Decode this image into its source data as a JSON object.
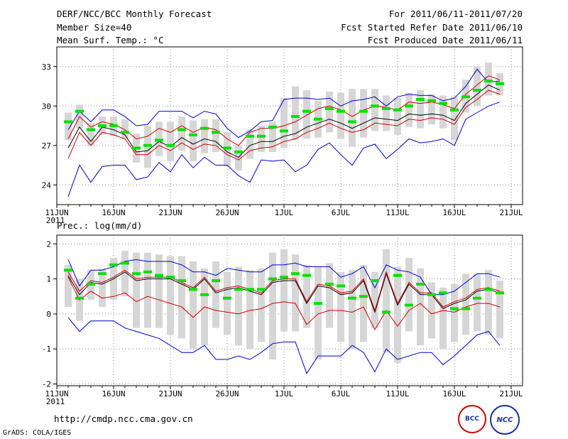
{
  "header": {
    "title": "DERF/NCC/BCC Monthly Forecast",
    "member_size": "Member Size=40",
    "variable": "Mean Surf. Temp.: °C",
    "period": "For 2011/06/11-2011/07/20",
    "fcst_started": "Fcst Started Refer Date 2011/06/10",
    "fcst_produced": "Fcst Produced Date 2011/06/11"
  },
  "colors": {
    "box": "#d6d6d6",
    "mean": "#00e000",
    "median": "#000000",
    "spread": "#cc0000",
    "extreme": "#0000cc"
  },
  "chart_data": [
    {
      "type": "line",
      "title": "Mean Surf. Temp.: °C",
      "xlabel": "",
      "ylabel": "°C",
      "ylim": [
        22.5,
        34.5
      ],
      "yticks": [
        24,
        27,
        30,
        33
      ],
      "xticks": [
        {
          "day": 0,
          "label": "11JUN",
          "sub": "2011"
        },
        {
          "day": 5,
          "label": "16JUN"
        },
        {
          "day": 10,
          "label": "21JUN"
        },
        {
          "day": 15,
          "label": "26JUN"
        },
        {
          "day": 20,
          "label": "1JUL"
        },
        {
          "day": 25,
          "label": "6JUL"
        },
        {
          "day": 30,
          "label": "11JUL"
        },
        {
          "day": 35,
          "label": "16JUL"
        },
        {
          "day": 40,
          "label": "21JUL"
        }
      ],
      "x": [
        1,
        2,
        3,
        4,
        5,
        6,
        7,
        8,
        9,
        10,
        11,
        12,
        13,
        14,
        15,
        16,
        17,
        18,
        19,
        20,
        21,
        22,
        23,
        24,
        25,
        26,
        27,
        28,
        29,
        30,
        31,
        32,
        33,
        34,
        35,
        36,
        37,
        38,
        39
      ],
      "series": [
        {
          "name": "max",
          "values": [
            23.1,
            25.5,
            24.2,
            25.4,
            25.5,
            25.5,
            24.4,
            24.6,
            25.7,
            25.0,
            26.3,
            25.3,
            26.1,
            25.5,
            25.5,
            24.7,
            24.2,
            25.9,
            25.8,
            25.9,
            25.0,
            25.5,
            26.7,
            27.2,
            26.3,
            25.5,
            26.8,
            27.1,
            26.0,
            26.7,
            27.5,
            27.2,
            27.3,
            27.5,
            27.0,
            29.0,
            29.5,
            30.0,
            30.3
          ]
        },
        {
          "name": "upper",
          "values": [
            27.5,
            29.2,
            28.4,
            28.8,
            28.6,
            28.2,
            27.5,
            27.7,
            28.3,
            28.0,
            28.5,
            28.0,
            28.4,
            28.2,
            27.5,
            27.0,
            28.0,
            28.3,
            28.3,
            28.5,
            28.8,
            29.3,
            29.8,
            30.0,
            29.7,
            29.2,
            29.7,
            30.0,
            29.9,
            29.7,
            30.3,
            30.2,
            30.3,
            30.1,
            29.8,
            30.9,
            31.6,
            32.3,
            32.0
          ]
        },
        {
          "name": "median",
          "values": [
            26.8,
            28.4,
            27.3,
            28.4,
            28.2,
            27.8,
            26.5,
            26.6,
            27.3,
            26.9,
            27.6,
            27.1,
            27.5,
            27.3,
            26.5,
            26.1,
            27.0,
            27.3,
            27.3,
            27.7,
            27.9,
            28.4,
            28.7,
            29.0,
            28.7,
            28.3,
            28.7,
            29.1,
            29.0,
            28.9,
            29.4,
            29.3,
            29.4,
            29.3,
            28.9,
            30.2,
            30.9,
            31.6,
            31.2
          ]
        },
        {
          "name": "lower",
          "values": [
            26.0,
            28.0,
            27.0,
            28.0,
            27.8,
            27.5,
            26.3,
            26.3,
            27.0,
            26.6,
            27.2,
            26.7,
            27.1,
            27.0,
            26.3,
            25.9,
            26.6,
            26.8,
            26.9,
            27.3,
            27.5,
            28.0,
            28.3,
            28.7,
            28.3,
            28.0,
            28.2,
            28.7,
            28.6,
            28.5,
            29.0,
            28.9,
            29.1,
            29.0,
            28.6,
            29.9,
            30.5,
            31.2,
            30.9
          ]
        },
        {
          "name": "min",
          "values": [
            28.2,
            29.6,
            28.8,
            29.7,
            29.7,
            29.2,
            28.5,
            28.6,
            29.6,
            29.6,
            29.6,
            29.1,
            29.6,
            29.4,
            28.3,
            27.6,
            28.1,
            28.8,
            28.9,
            30.5,
            30.6,
            30.6,
            30.5,
            30.6,
            30.0,
            30.4,
            30.5,
            30.7,
            30.0,
            30.7,
            30.9,
            30.8,
            30.8,
            30.4,
            30.6,
            31.5,
            32.8,
            31.8,
            31.9
          ]
        }
      ],
      "mean": [
        28.8,
        29.6,
        28.2,
        28.5,
        28.5,
        28.0,
        26.8,
        27.0,
        27.4,
        27.0,
        28.2,
        27.8,
        28.3,
        28.0,
        26.8,
        26.5,
        27.7,
        27.7,
        28.4,
        28.1,
        29.2,
        29.6,
        29.0,
        29.8,
        29.6,
        28.8,
        29.6,
        30.0,
        29.8,
        29.7,
        30.0,
        30.5,
        30.4,
        30.2,
        29.7,
        30.7,
        31.2,
        31.9,
        31.7
      ],
      "box_low": [
        27.4,
        28.3,
        27.0,
        27.8,
        27.7,
        27.5,
        25.7,
        25.3,
        26.2,
        25.8,
        26.6,
        25.8,
        26.4,
        26.5,
        25.4,
        25.1,
        26.0,
        26.5,
        26.5,
        26.8,
        27.4,
        27.5,
        27.6,
        28.0,
        27.5,
        26.9,
        27.6,
        28.1,
        28.1,
        27.8,
        28.4,
        28.3,
        28.6,
        28.3,
        27.4,
        29.5,
        30.0,
        30.8,
        30.8
      ],
      "box_high": [
        29.5,
        30.1,
        28.7,
        29.2,
        29.2,
        29.0,
        27.9,
        28.5,
        28.8,
        28.8,
        29.2,
        28.9,
        29.0,
        29.0,
        28.0,
        27.0,
        28.2,
        28.5,
        28.8,
        30.6,
        31.5,
        31.2,
        30.4,
        31.1,
        31.0,
        31.3,
        31.3,
        31.3,
        30.8,
        30.6,
        31.0,
        31.2,
        30.9,
        30.8,
        30.7,
        32.0,
        33.0,
        33.3,
        32.5
      ]
    },
    {
      "type": "line",
      "title": "Prec.: log(mm/d)",
      "xlabel": "",
      "ylabel": "log(mm/d)",
      "ylim": [
        -2.05,
        2.25
      ],
      "yticks": [
        -2,
        -1,
        0,
        1,
        2
      ],
      "xticks": [
        {
          "day": 0,
          "label": "11JUN",
          "sub": "2011"
        },
        {
          "day": 5,
          "label": "16JUN"
        },
        {
          "day": 10,
          "label": "21JUN"
        },
        {
          "day": 15,
          "label": "26JUN"
        },
        {
          "day": 20,
          "label": "1JUL"
        },
        {
          "day": 25,
          "label": "6JUL"
        },
        {
          "day": 30,
          "label": "11JUL"
        },
        {
          "day": 35,
          "label": "16JUL"
        },
        {
          "day": 40,
          "label": "21JUL"
        }
      ],
      "x": [
        1,
        2,
        3,
        4,
        5,
        6,
        7,
        8,
        9,
        10,
        11,
        12,
        13,
        14,
        15,
        16,
        17,
        18,
        19,
        20,
        21,
        22,
        23,
        24,
        25,
        26,
        27,
        28,
        29,
        30,
        31,
        32,
        33,
        34,
        35,
        36,
        37,
        38,
        39
      ],
      "series": [
        {
          "name": "min",
          "values": [
            -0.1,
            -0.5,
            -0.2,
            -0.2,
            -0.2,
            -0.4,
            -0.5,
            -0.6,
            -0.7,
            -0.9,
            -1.1,
            -1.1,
            -0.9,
            -1.3,
            -1.3,
            -1.2,
            -1.3,
            -1.1,
            -0.85,
            -0.8,
            -0.8,
            -1.7,
            -1.2,
            -1.2,
            -1.2,
            -0.9,
            -1.1,
            -1.65,
            -1.0,
            -1.3,
            -1.2,
            -1.1,
            -1.1,
            -1.45,
            -1.2,
            -0.9,
            -0.6,
            -0.5,
            -0.9
          ]
        },
        {
          "name": "lower",
          "values": [
            1.05,
            0.4,
            0.65,
            0.45,
            0.5,
            0.6,
            0.35,
            0.5,
            0.4,
            0.3,
            0.2,
            -0.1,
            0.2,
            0.1,
            0.05,
            0.0,
            0.1,
            0.15,
            0.3,
            0.35,
            0.3,
            -0.3,
            0.0,
            0.1,
            0.1,
            0.05,
            0.2,
            -0.45,
            0.1,
            -0.35,
            0.1,
            0.3,
            0.0,
            0.1,
            0.05,
            0.2,
            0.3,
            0.3,
            0.2
          ]
        },
        {
          "name": "median",
          "values": [
            1.1,
            0.55,
            0.9,
            0.85,
            1.0,
            1.2,
            0.95,
            1.0,
            1.0,
            1.0,
            0.85,
            0.7,
            1.0,
            0.6,
            0.7,
            0.75,
            0.65,
            0.55,
            0.9,
            0.95,
            0.95,
            0.3,
            0.8,
            0.75,
            0.55,
            0.6,
            0.95,
            0.05,
            1.15,
            0.25,
            0.85,
            0.55,
            0.55,
            0.15,
            0.3,
            0.4,
            0.65,
            0.7,
            0.6
          ]
        },
        {
          "name": "upper",
          "values": [
            1.2,
            0.65,
            0.95,
            0.9,
            1.05,
            1.25,
            1.0,
            1.05,
            1.05,
            1.05,
            0.9,
            0.75,
            1.05,
            0.65,
            0.75,
            0.8,
            0.7,
            0.6,
            0.95,
            1.0,
            1.0,
            0.35,
            0.85,
            0.8,
            0.6,
            0.65,
            1.0,
            0.1,
            1.2,
            0.3,
            0.9,
            0.6,
            0.6,
            0.2,
            0.35,
            0.45,
            0.7,
            0.75,
            0.65
          ]
        },
        {
          "name": "max",
          "values": [
            1.55,
            0.8,
            1.25,
            1.25,
            1.35,
            1.5,
            1.55,
            1.5,
            1.5,
            1.5,
            1.4,
            1.2,
            1.2,
            1.1,
            1.3,
            1.25,
            1.2,
            1.2,
            1.4,
            1.4,
            1.45,
            1.35,
            1.35,
            1.35,
            1.05,
            1.15,
            1.35,
            0.75,
            1.4,
            1.25,
            1.2,
            1.05,
            0.55,
            0.55,
            0.65,
            0.9,
            1.15,
            1.15,
            1.05
          ]
        }
      ],
      "mean": [
        1.25,
        0.45,
        0.85,
        1.15,
        1.4,
        1.45,
        1.15,
        1.2,
        1.1,
        1.05,
        0.95,
        0.7,
        0.55,
        0.95,
        0.45,
        0.7,
        0.7,
        0.7,
        1.0,
        1.05,
        1.15,
        1.1,
        0.3,
        0.85,
        0.8,
        0.45,
        0.5,
        0.95,
        0.05,
        1.1,
        0.25,
        0.85,
        0.55,
        0.6,
        0.15,
        0.15,
        0.45,
        0.7,
        0.6
      ],
      "box_low": [
        0.2,
        -0.2,
        0.4,
        0.2,
        0.4,
        0.5,
        -0.4,
        -0.4,
        -0.4,
        -0.6,
        -0.7,
        -1.0,
        -0.9,
        -0.4,
        -0.6,
        -0.9,
        -1.0,
        -0.8,
        -1.3,
        -0.5,
        -0.5,
        -0.4,
        -1.3,
        -0.4,
        -0.8,
        -1.0,
        -0.8,
        -0.4,
        -1.1,
        -1.4,
        -0.5,
        -0.9,
        -0.7,
        -1.0,
        -0.8,
        -0.6,
        -0.5,
        -0.6,
        -0.7
      ],
      "box_high": [
        1.4,
        1.0,
        1.25,
        1.3,
        1.6,
        1.8,
        1.75,
        1.75,
        1.7,
        1.65,
        1.65,
        1.5,
        1.3,
        1.5,
        1.2,
        1.35,
        1.25,
        1.3,
        1.75,
        1.85,
        1.7,
        1.4,
        1.35,
        1.45,
        1.2,
        1.25,
        1.4,
        1.2,
        1.85,
        1.35,
        1.6,
        1.3,
        0.9,
        0.75,
        0.85,
        1.15,
        1.15,
        1.25,
        0.95
      ]
    }
  ],
  "footer": {
    "url": "http://cmdp.ncc.cma.gov.cn",
    "credit": "GrADS: COLA/IGES",
    "logo1": "BCC",
    "logo2": "NCC"
  }
}
